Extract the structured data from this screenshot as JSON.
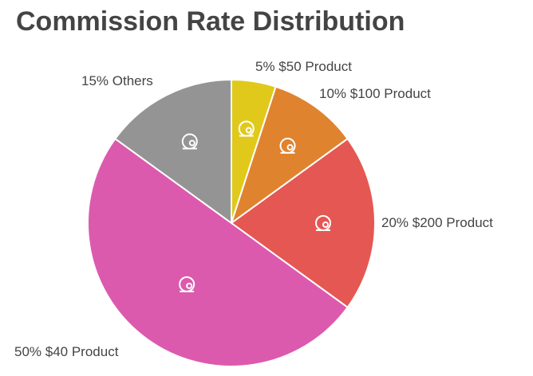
{
  "chart_data": {
    "type": "pie",
    "title": "Commission Rate Distribution",
    "start": "top",
    "direction": "clockwise",
    "slices": [
      {
        "label": "5% $50 Product",
        "value": 5,
        "color": "#E0C91B",
        "icon": "pizza-icon"
      },
      {
        "label": "10% $100 Product",
        "value": 10,
        "color": "#E0832F",
        "icon": "kitchen-scale-icon"
      },
      {
        "label": "20% $200 Product",
        "value": 20,
        "color": "#E55752",
        "icon": "pie-icon"
      },
      {
        "label": "50% $40 Product",
        "value": 50,
        "color": "#DC5AAD",
        "icon": "tape-dispenser-icon"
      },
      {
        "label": "15% Others",
        "value": 15,
        "color": "#949494",
        "icon": "person-arrows-icon"
      }
    ]
  }
}
